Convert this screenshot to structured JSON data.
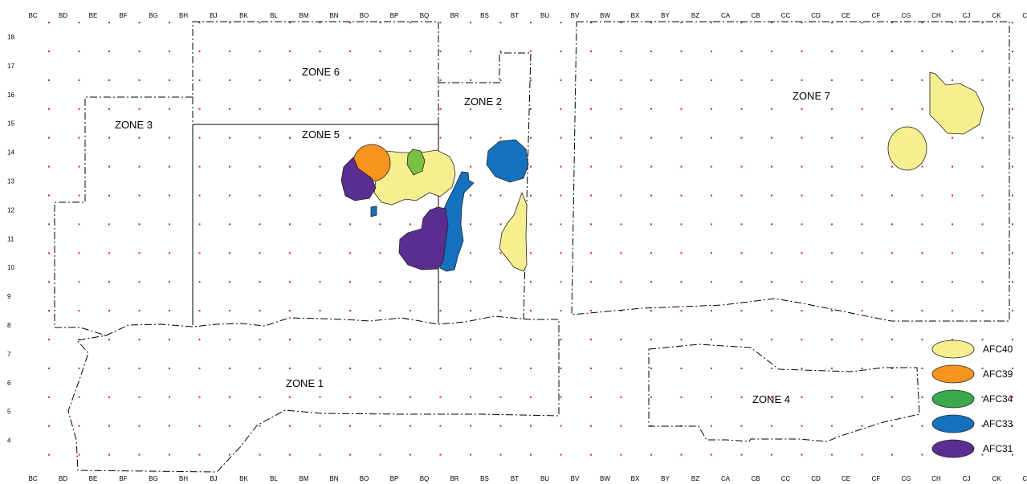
{
  "columns": [
    "BC",
    "BD",
    "BE",
    "BF",
    "BG",
    "BH",
    "BJ",
    "BK",
    "BL",
    "BM",
    "BN",
    "BO",
    "BP",
    "BQ",
    "BR",
    "BS",
    "BT",
    "BU",
    "BV",
    "BW",
    "BX",
    "BY",
    "BZ",
    "CA",
    "CB",
    "CC",
    "CD",
    "CE",
    "CF",
    "CG",
    "CH",
    "CJ",
    "CK",
    "CL"
  ],
  "rows": [
    "18",
    "17",
    "16",
    "15",
    "14",
    "13",
    "12",
    "11",
    "10",
    "9",
    "8",
    "7",
    "6",
    "5",
    "4"
  ],
  "zones": {
    "zone1": "ZONE 1",
    "zone2": "ZONE 2",
    "zone3": "ZONE 3",
    "zone4": "ZONE 4",
    "zone5": "ZONE 5",
    "zone6": "ZONE 6",
    "zone7": "ZONE 7"
  },
  "legend": [
    {
      "label": "AFC40",
      "color": "#f5ef8f"
    },
    {
      "label": "AFC39",
      "color": "#f7941d"
    },
    {
      "label": "AFC34",
      "color": "#3aaa4a"
    },
    {
      "label": "AFC33",
      "color": "#1371be"
    },
    {
      "label": "AFC31",
      "color": "#5c2d91"
    }
  ],
  "colors": {
    "grid_dot": "#e2231a",
    "outline": "#000000"
  }
}
